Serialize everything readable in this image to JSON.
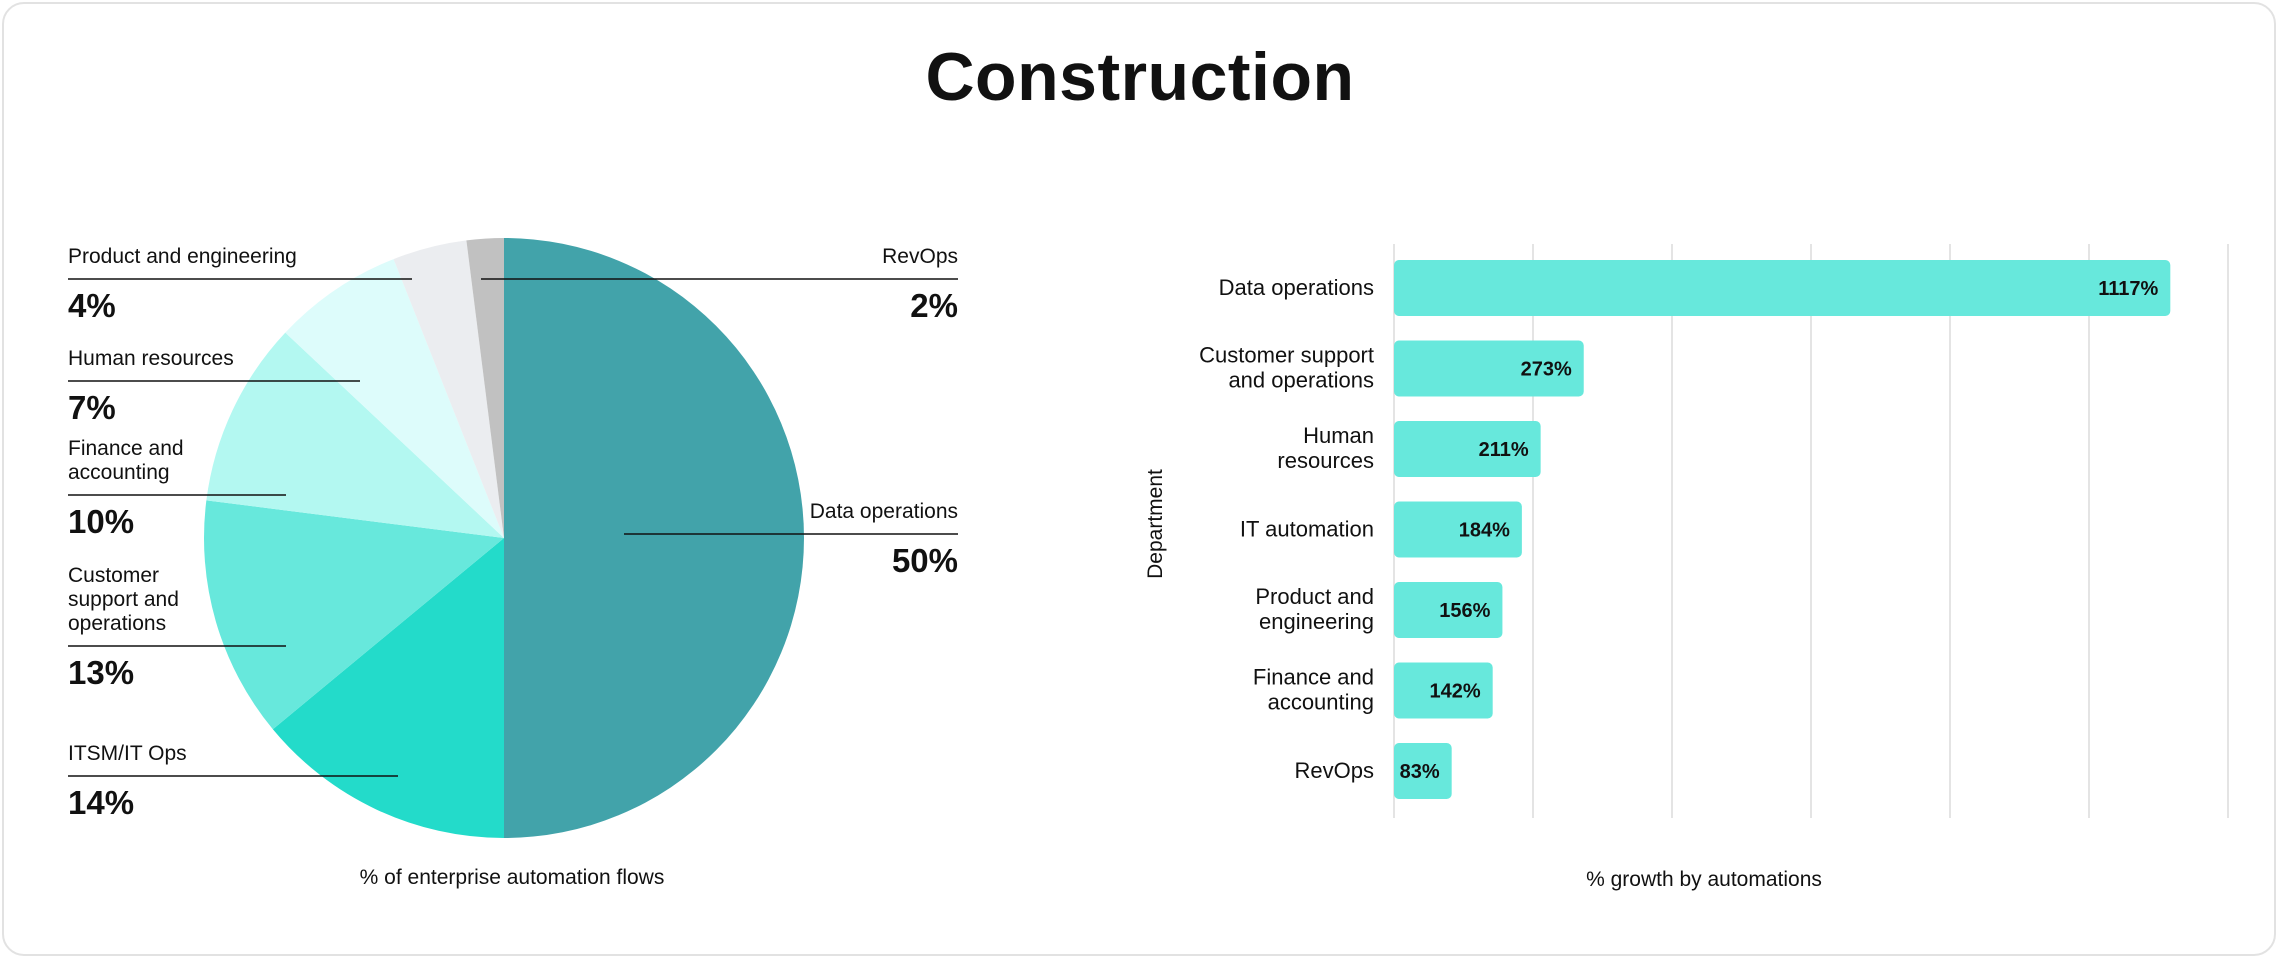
{
  "title": "Construction",
  "colors": {
    "pie": [
      "#42a3aa",
      "#23dbca",
      "#67e8dc",
      "#b3f8f1",
      "#ddfcfb",
      "#ebedf0",
      "#c1c1c1"
    ],
    "bar": "#67e8dc",
    "grid": "#dcdcdc",
    "leader": "#111111"
  },
  "chart_data": [
    {
      "type": "pie",
      "title": "",
      "xlabel": "% of enterprise automation flows",
      "slices": [
        {
          "label_lines": [
            "Data operations"
          ],
          "value": 50,
          "display": "50%",
          "side": "right"
        },
        {
          "label_lines": [
            "ITSM/IT Ops"
          ],
          "value": 14,
          "display": "14%",
          "side": "left"
        },
        {
          "label_lines": [
            "Customer",
            "support and",
            "operations"
          ],
          "value": 13,
          "display": "13%",
          "side": "left"
        },
        {
          "label_lines": [
            "Finance and",
            "accounting"
          ],
          "value": 10,
          "display": "10%",
          "side": "left"
        },
        {
          "label_lines": [
            "Human resources"
          ],
          "value": 7,
          "display": "7%",
          "side": "left"
        },
        {
          "label_lines": [
            "Product and engineering"
          ],
          "value": 4,
          "display": "4%",
          "side": "left"
        },
        {
          "label_lines": [
            "RevOps"
          ],
          "value": 2,
          "display": "2%",
          "side": "right"
        }
      ]
    },
    {
      "type": "bar",
      "orientation": "horizontal",
      "xlabel": "% growth by automations",
      "ylabel": "Department",
      "xlim": [
        0,
        1200
      ],
      "grid": true,
      "categories": [
        [
          "Data operations"
        ],
        [
          "Customer support",
          "and operations"
        ],
        [
          "Human",
          "resources"
        ],
        [
          "IT automation"
        ],
        [
          "Product and",
          "engineering"
        ],
        [
          "Finance and",
          "accounting"
        ],
        [
          "RevOps"
        ]
      ],
      "values": [
        1117,
        273,
        211,
        184,
        156,
        142,
        83
      ],
      "labels": [
        "1117%",
        "273%",
        "211%",
        "184%",
        "156%",
        "142%",
        "83%"
      ]
    }
  ]
}
